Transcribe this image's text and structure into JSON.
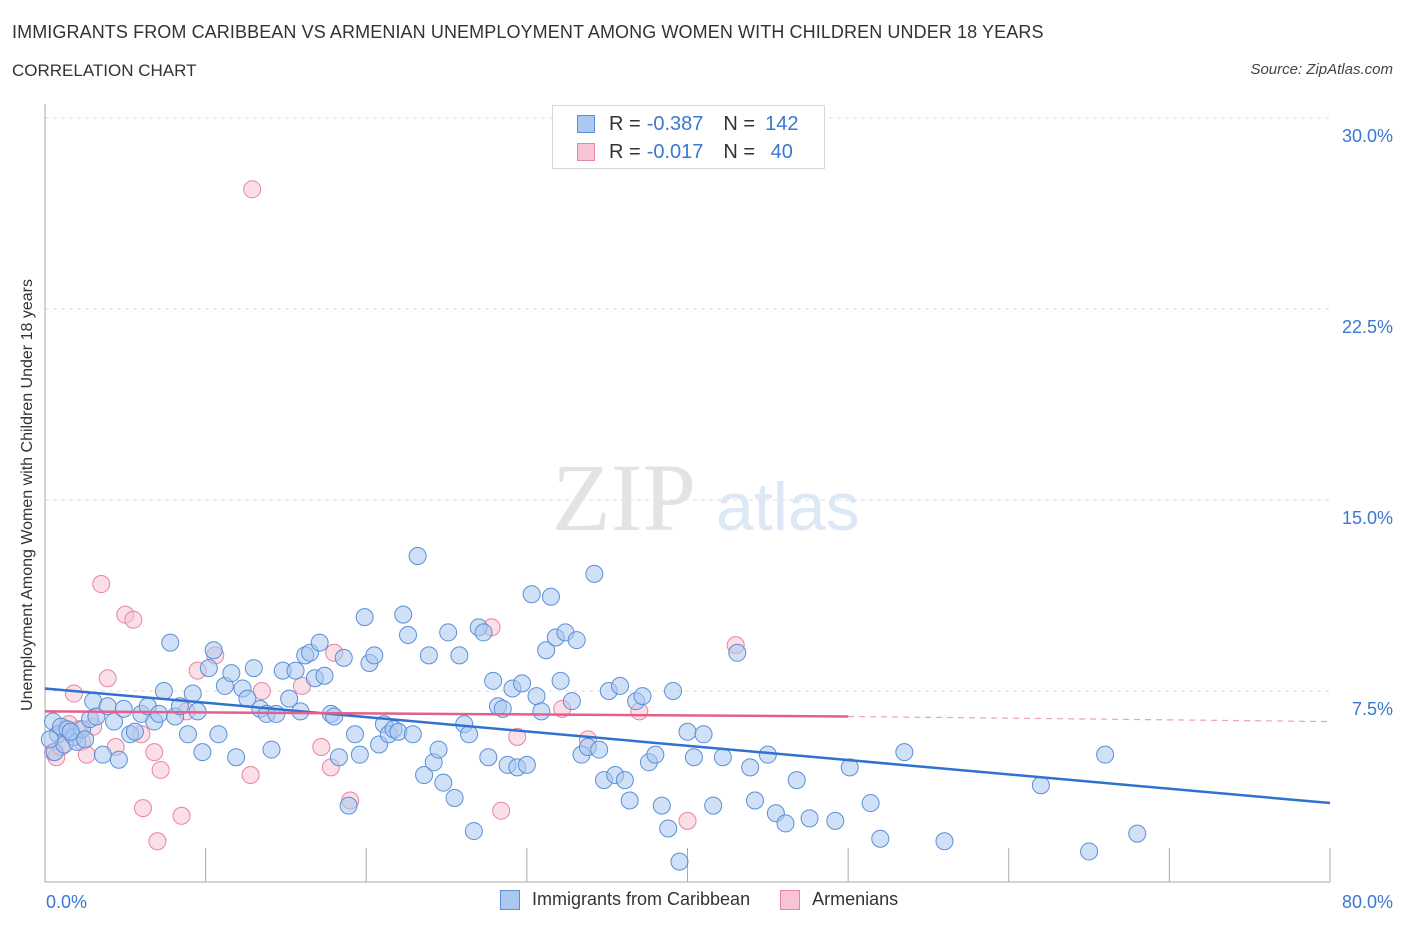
{
  "title": "IMMIGRANTS FROM CARIBBEAN VS ARMENIAN UNEMPLOYMENT AMONG WOMEN WITH CHILDREN UNDER 18 YEARS",
  "subtitle": "CORRELATION CHART",
  "source": "Source: ZipAtlas.com",
  "watermark": {
    "zip": "ZIP",
    "atlas": "atlas"
  },
  "legend": {
    "rows": [
      {
        "r_label": "R =",
        "r_value": "-0.387",
        "n_label": "N =",
        "n_value": "142"
      },
      {
        "r_label": "R =",
        "r_value": "-0.017",
        "n_label": "N =",
        "n_value": " 40"
      }
    ]
  },
  "colors": {
    "blue_fill": "#aac8f0",
    "blue_stroke": "#5b8fd6",
    "blue_line": "#2f72d0",
    "pink_fill": "#f6c4d3",
    "pink_stroke": "#e8849f",
    "pink_line": "#e3608a",
    "axis_text": "#3b78d1",
    "grid": "#dddddd"
  },
  "chart_data": {
    "type": "scatter",
    "title": "IMMIGRANTS FROM CARIBBEAN VS ARMENIAN UNEMPLOYMENT AMONG WOMEN WITH CHILDREN UNDER 18 YEARS",
    "xlabel": "",
    "ylabel": "Unemployment Among Women with Children Under 18 years",
    "xlim": [
      0,
      80
    ],
    "ylim": [
      0,
      30
    ],
    "x_tick_labels": [
      "0.0%",
      "80.0%"
    ],
    "y_ticks": [
      7.5,
      15.0,
      22.5,
      30.0
    ],
    "y_tick_labels": [
      "7.5%",
      "15.0%",
      "22.5%",
      "30.0%"
    ],
    "grid": true,
    "legend_position": "bottom",
    "series": [
      {
        "name": "Immigrants from Caribbean",
        "trend": {
          "x": [
            0,
            80
          ],
          "y": [
            7.6,
            3.1
          ]
        },
        "points": [
          [
            0.5,
            6.3
          ],
          [
            0.6,
            5.1
          ],
          [
            0.8,
            5.8
          ],
          [
            1.0,
            6.1
          ],
          [
            1.2,
            5.4
          ],
          [
            1.4,
            6.0
          ],
          [
            1.8,
            5.7
          ],
          [
            2.0,
            5.5
          ],
          [
            2.3,
            6.0
          ],
          [
            2.8,
            6.4
          ],
          [
            3.0,
            7.1
          ],
          [
            3.2,
            6.5
          ],
          [
            3.6,
            5.0
          ],
          [
            3.9,
            6.9
          ],
          [
            4.3,
            6.3
          ],
          [
            4.6,
            4.8
          ],
          [
            4.9,
            6.8
          ],
          [
            5.3,
            5.8
          ],
          [
            5.6,
            5.9
          ],
          [
            6.0,
            6.6
          ],
          [
            6.4,
            6.9
          ],
          [
            6.8,
            6.3
          ],
          [
            7.1,
            6.6
          ],
          [
            7.4,
            7.5
          ],
          [
            7.8,
            9.4
          ],
          [
            8.1,
            6.5
          ],
          [
            8.4,
            6.9
          ],
          [
            8.9,
            5.8
          ],
          [
            9.2,
            7.4
          ],
          [
            9.5,
            6.7
          ],
          [
            9.8,
            5.1
          ],
          [
            10.2,
            8.4
          ],
          [
            10.5,
            9.1
          ],
          [
            10.8,
            5.8
          ],
          [
            11.2,
            7.7
          ],
          [
            11.6,
            8.2
          ],
          [
            11.9,
            4.9
          ],
          [
            12.3,
            7.6
          ],
          [
            12.6,
            7.2
          ],
          [
            13.0,
            8.4
          ],
          [
            13.4,
            6.8
          ],
          [
            13.8,
            6.6
          ],
          [
            14.1,
            5.2
          ],
          [
            14.4,
            6.6
          ],
          [
            14.8,
            8.3
          ],
          [
            15.2,
            7.2
          ],
          [
            15.6,
            8.3
          ],
          [
            15.9,
            6.7
          ],
          [
            16.2,
            8.9
          ],
          [
            16.5,
            9.0
          ],
          [
            16.8,
            8.0
          ],
          [
            17.1,
            9.4
          ],
          [
            17.4,
            8.1
          ],
          [
            17.8,
            6.6
          ],
          [
            18.0,
            6.5
          ],
          [
            18.3,
            4.9
          ],
          [
            18.6,
            8.8
          ],
          [
            18.9,
            3.0
          ],
          [
            19.3,
            5.8
          ],
          [
            19.6,
            5.0
          ],
          [
            19.9,
            10.4
          ],
          [
            20.2,
            8.6
          ],
          [
            20.5,
            8.9
          ],
          [
            20.8,
            5.4
          ],
          [
            21.1,
            6.2
          ],
          [
            21.4,
            5.8
          ],
          [
            21.7,
            6.0
          ],
          [
            22.0,
            5.9
          ],
          [
            22.3,
            10.5
          ],
          [
            22.6,
            9.7
          ],
          [
            22.9,
            5.8
          ],
          [
            23.2,
            12.8
          ],
          [
            23.6,
            4.2
          ],
          [
            23.9,
            8.9
          ],
          [
            24.2,
            4.7
          ],
          [
            24.5,
            5.2
          ],
          [
            24.8,
            3.9
          ],
          [
            25.1,
            9.8
          ],
          [
            25.5,
            3.3
          ],
          [
            25.8,
            8.9
          ],
          [
            26.1,
            6.2
          ],
          [
            26.4,
            5.8
          ],
          [
            26.7,
            2.0
          ],
          [
            27.0,
            10.0
          ],
          [
            27.3,
            9.8
          ],
          [
            27.6,
            4.9
          ],
          [
            27.9,
            7.9
          ],
          [
            28.2,
            6.9
          ],
          [
            28.5,
            6.8
          ],
          [
            28.8,
            4.6
          ],
          [
            29.1,
            7.6
          ],
          [
            29.4,
            4.5
          ],
          [
            29.7,
            7.8
          ],
          [
            30.0,
            4.6
          ],
          [
            30.3,
            11.3
          ],
          [
            30.6,
            7.3
          ],
          [
            30.9,
            6.7
          ],
          [
            31.2,
            9.1
          ],
          [
            31.5,
            11.2
          ],
          [
            31.8,
            9.6
          ],
          [
            32.1,
            7.9
          ],
          [
            32.4,
            9.8
          ],
          [
            32.8,
            7.1
          ],
          [
            33.1,
            9.5
          ],
          [
            33.4,
            5.0
          ],
          [
            33.8,
            5.3
          ],
          [
            34.2,
            12.1
          ],
          [
            34.5,
            5.2
          ],
          [
            34.8,
            4.0
          ],
          [
            35.1,
            7.5
          ],
          [
            35.5,
            4.2
          ],
          [
            35.8,
            7.7
          ],
          [
            36.1,
            4.0
          ],
          [
            36.4,
            3.2
          ],
          [
            36.8,
            7.1
          ],
          [
            37.2,
            7.3
          ],
          [
            37.6,
            4.7
          ],
          [
            38.0,
            5.0
          ],
          [
            38.4,
            3.0
          ],
          [
            38.8,
            2.1
          ],
          [
            39.1,
            7.5
          ],
          [
            39.5,
            0.8
          ],
          [
            40.0,
            5.9
          ],
          [
            40.4,
            4.9
          ],
          [
            41.0,
            5.8
          ],
          [
            41.6,
            3.0
          ],
          [
            42.2,
            4.9
          ],
          [
            43.1,
            9.0
          ],
          [
            43.9,
            4.5
          ],
          [
            44.2,
            3.2
          ],
          [
            45.0,
            5.0
          ],
          [
            45.5,
            2.7
          ],
          [
            46.1,
            2.3
          ],
          [
            46.8,
            4.0
          ],
          [
            47.6,
            2.5
          ],
          [
            49.2,
            2.4
          ],
          [
            50.1,
            4.5
          ],
          [
            51.4,
            3.1
          ],
          [
            52.0,
            1.7
          ],
          [
            53.5,
            5.1
          ],
          [
            56.0,
            1.6
          ],
          [
            62.0,
            3.8
          ],
          [
            65.0,
            1.2
          ],
          [
            66.0,
            5.0
          ],
          [
            68.0,
            1.9
          ],
          [
            0.3,
            5.6
          ],
          [
            1.6,
            5.9
          ],
          [
            2.5,
            5.6
          ]
        ]
      },
      {
        "name": "Armenians",
        "trend": {
          "x": [
            0,
            50
          ],
          "y": [
            6.7,
            6.5
          ]
        },
        "trend_extension": {
          "x": [
            50,
            80
          ],
          "y": [
            6.5,
            6.3
          ]
        },
        "points": [
          [
            0.5,
            5.1
          ],
          [
            0.7,
            4.9
          ],
          [
            1.0,
            5.3
          ],
          [
            1.2,
            6.0
          ],
          [
            1.5,
            6.2
          ],
          [
            1.8,
            7.4
          ],
          [
            2.1,
            6.0
          ],
          [
            2.3,
            5.5
          ],
          [
            2.6,
            5.0
          ],
          [
            3.0,
            6.1
          ],
          [
            3.5,
            11.7
          ],
          [
            3.9,
            8.0
          ],
          [
            4.4,
            5.3
          ],
          [
            5.0,
            10.5
          ],
          [
            5.5,
            10.3
          ],
          [
            6.0,
            5.8
          ],
          [
            6.1,
            2.9
          ],
          [
            6.8,
            5.1
          ],
          [
            7.2,
            4.4
          ],
          [
            7.0,
            1.6
          ],
          [
            8.5,
            2.6
          ],
          [
            8.8,
            6.7
          ],
          [
            9.5,
            8.3
          ],
          [
            10.6,
            8.9
          ],
          [
            12.8,
            4.2
          ],
          [
            12.9,
            27.2
          ],
          [
            13.5,
            7.5
          ],
          [
            16.0,
            7.7
          ],
          [
            17.2,
            5.3
          ],
          [
            17.8,
            4.5
          ],
          [
            18.0,
            9.0
          ],
          [
            19.0,
            3.2
          ],
          [
            27.8,
            10.0
          ],
          [
            28.4,
            2.8
          ],
          [
            29.4,
            5.7
          ],
          [
            32.2,
            6.8
          ],
          [
            33.8,
            5.6
          ],
          [
            37.0,
            6.7
          ],
          [
            40.0,
            2.4
          ],
          [
            43.0,
            9.3
          ]
        ]
      }
    ]
  }
}
